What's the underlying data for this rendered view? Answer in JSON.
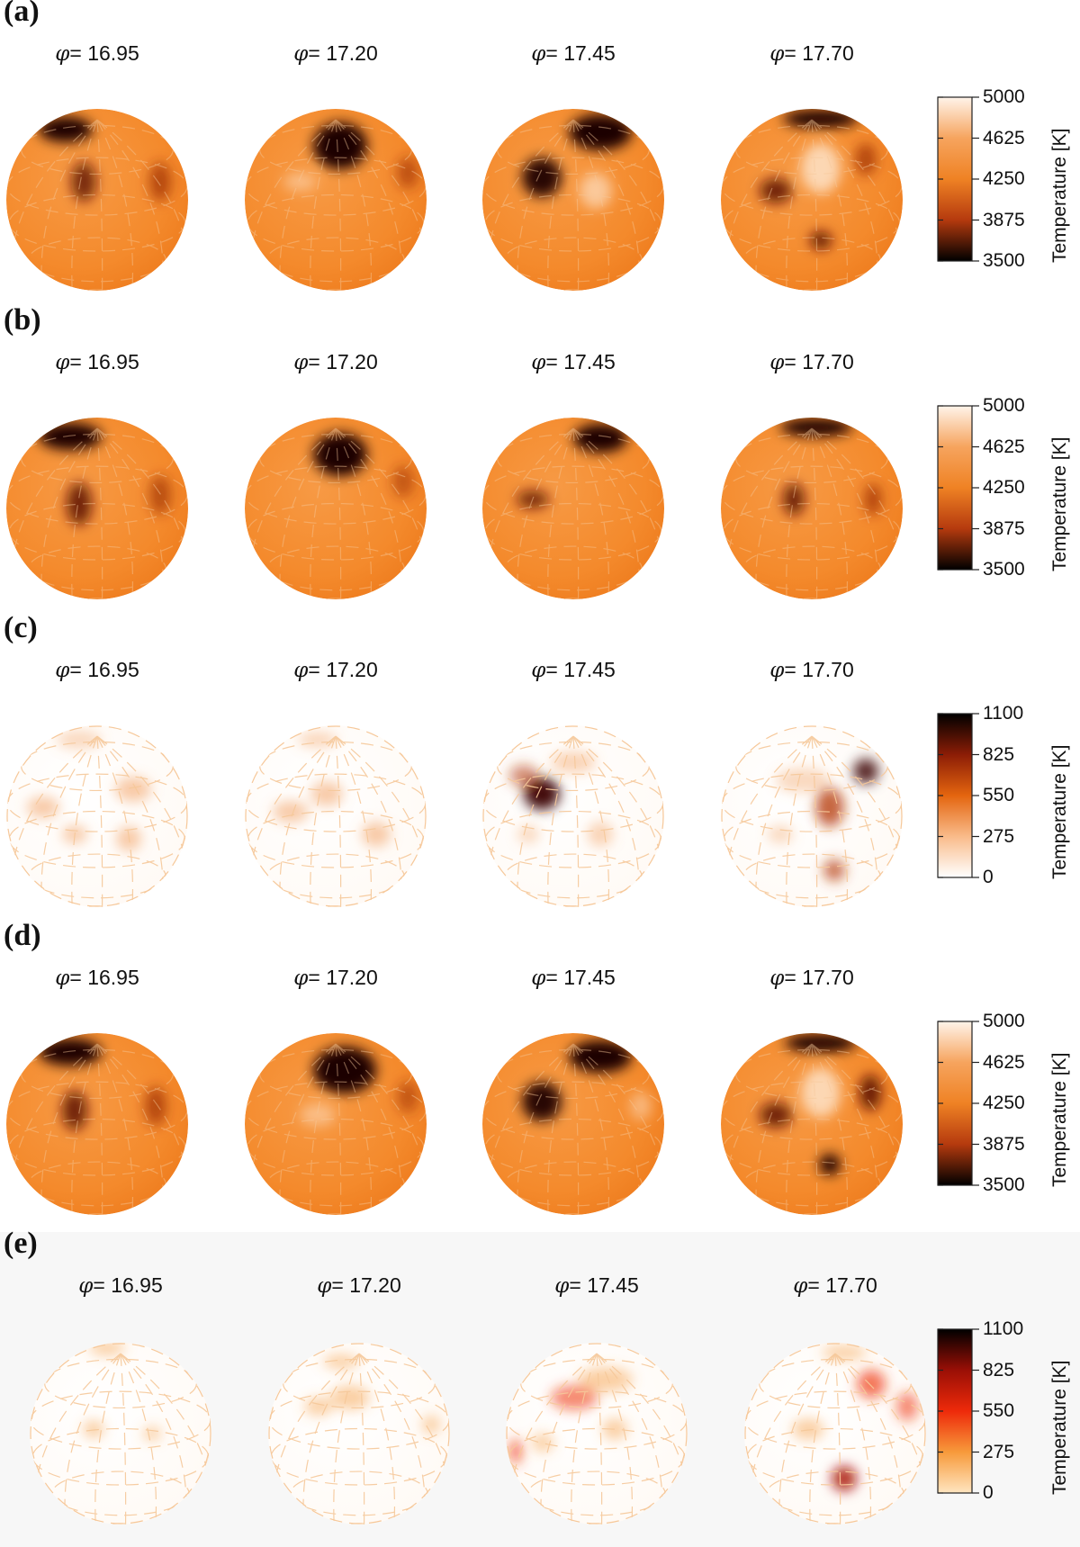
{
  "panels": [
    {
      "label": "(a)",
      "kind": "temp",
      "phases": [
        "16.95",
        "17.20",
        "17.45",
        "17.70"
      ]
    },
    {
      "label": "(b)",
      "kind": "temp",
      "phases": [
        "16.95",
        "17.20",
        "17.45",
        "17.70"
      ]
    },
    {
      "label": "(c)",
      "kind": "diff",
      "phases": [
        "16.95",
        "17.20",
        "17.45",
        "17.70"
      ]
    },
    {
      "label": "(d)",
      "kind": "temp",
      "phases": [
        "16.95",
        "17.20",
        "17.45",
        "17.70"
      ]
    },
    {
      "label": "(e)",
      "kind": "diff2",
      "phases": [
        "16.95",
        "17.20",
        "17.45",
        "17.70"
      ]
    }
  ],
  "phase_prefix": "φ",
  "phase_eq": "= ",
  "colorbars": {
    "temp": {
      "ticks": [
        "5000",
        "4625",
        "4250",
        "3875",
        "3500"
      ],
      "title": "Temperature [K]",
      "stops": [
        "#fff4ea",
        "#f6a45e",
        "#ef8224",
        "#b53a0e",
        "#000000"
      ]
    },
    "diff": {
      "ticks": [
        "1100",
        "825",
        "550",
        "275",
        "0"
      ],
      "title": "Temperature [K]",
      "stops": [
        "#000000",
        "#8c1d06",
        "#e4650f",
        "#f9bb8a",
        "#ffffff"
      ]
    },
    "diff2": {
      "ticks": [
        "1100",
        "825",
        "550",
        "275",
        "0"
      ],
      "title": "Temperature [K]",
      "stops": [
        "#000000",
        "#9a0f06",
        "#ee2a0a",
        "#f79a3b",
        "#ffe5c0"
      ]
    }
  },
  "colors": {
    "photosphere": "#f48a2c",
    "grid": "#f6c89a",
    "spot": "#2a0500"
  }
}
